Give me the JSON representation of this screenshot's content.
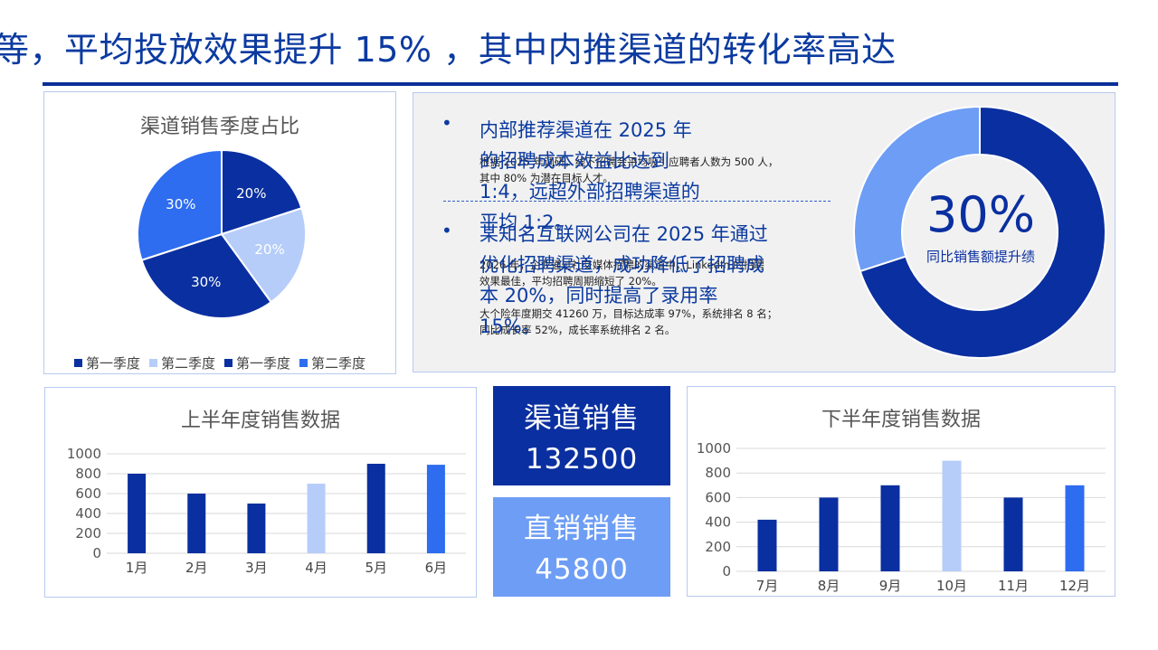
{
  "header": {
    "title": "等，平均投放效果提升 15% ，其中内推渠道的转化率高达"
  },
  "panel_right": {
    "bullets": [
      {
        "headline": "内部推荐渠道在 2025 年\n的招聘成本效益比达到\n1:4，远超外部招聘渠道的\n平均 1:2。",
        "detail": "根据 2025 年调研，线下招聘会平均吸引应聘者人数为 500 人，\n其中 80% 为潜在目标人才。"
      },
      {
        "headline": "某知名互联网公司在 2025 年通过\n优化招聘渠道，成功降低了招聘成\n本 20%，同时提高了录用率\n15%。",
        "detail": "2026 年，企业通过社交媒体招聘的渠道中，LinkedIn 的招聘\n效果最佳，平均招聘周期缩短了 20%。\n\n大个险年度期交 41260 万，目标达成率 97%，系统排名 8 名；\n同比成长率 52%，成长率系统排名 2 名。"
      }
    ],
    "donut": {
      "value_label": "30%",
      "caption": "同比销售额提升绩",
      "fraction": 0.3,
      "color_main": "#0a2fa0",
      "color_part": "#6d9df5"
    }
  },
  "kpis": [
    {
      "label": "渠道销售",
      "value": "132500",
      "color": "#0a2fa0"
    },
    {
      "label": "直销销售",
      "value": "45800",
      "color": "#6d9df5"
    }
  ],
  "chart_data": [
    {
      "type": "pie",
      "title": "渠道销售季度占比",
      "categories": [
        "第一季度",
        "第二季度",
        "第一季度",
        "第二季度"
      ],
      "values": [
        20,
        20,
        30,
        30
      ],
      "data_labels": [
        "20%",
        "20%",
        "30%",
        "30%"
      ],
      "colors": [
        "#0a2fa0",
        "#b6cdfa",
        "#0a2fa0",
        "#2e6cf0"
      ],
      "legend": {
        "position": "bottom",
        "entries": [
          "第一季度",
          "第二季度",
          "第一季度",
          "第二季度"
        ],
        "colors": [
          "#0a2fa0",
          "#b6cdfa",
          "#0a2fa0",
          "#2e6cf0"
        ]
      }
    },
    {
      "type": "bar",
      "title": "上半年度销售数据",
      "categories": [
        "1月",
        "2月",
        "3月",
        "4月",
        "5月",
        "6月"
      ],
      "values": [
        800,
        600,
        500,
        700,
        900,
        890
      ],
      "colors": [
        "#0a2fa0",
        "#0a2fa0",
        "#0a2fa0",
        "#b6cdfa",
        "#0a2fa0",
        "#2e6cf0"
      ],
      "ylim": [
        0,
        1000
      ],
      "yticks": [
        0,
        200,
        400,
        600,
        800,
        1000
      ],
      "grid": true
    },
    {
      "type": "bar",
      "title": "下半年度销售数据",
      "categories": [
        "7月",
        "8月",
        "9月",
        "10月",
        "11月",
        "12月"
      ],
      "values": [
        420,
        600,
        700,
        900,
        600,
        700
      ],
      "colors": [
        "#0a2fa0",
        "#0a2fa0",
        "#0a2fa0",
        "#b6cdfa",
        "#0a2fa0",
        "#2e6cf0"
      ],
      "ylim": [
        0,
        1000
      ],
      "yticks": [
        0,
        200,
        400,
        600,
        800,
        1000
      ],
      "grid": true
    }
  ]
}
